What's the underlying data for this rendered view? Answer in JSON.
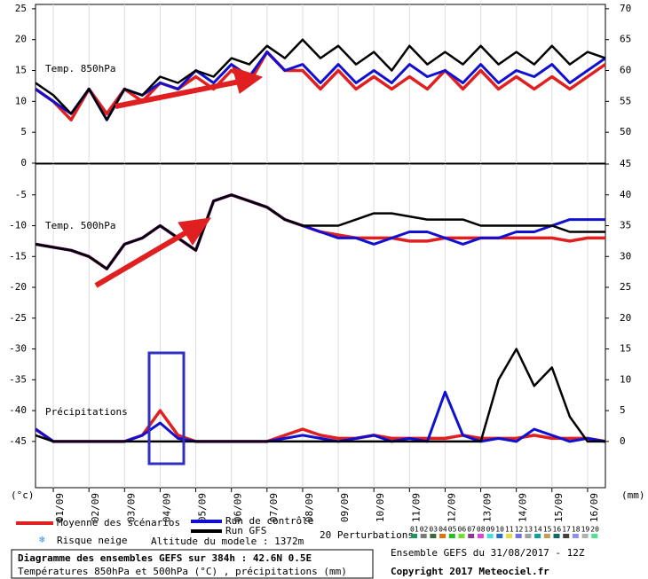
{
  "chart_data": [
    {
      "type": "line",
      "label": "Temp. 850hPa",
      "ylim": [
        0,
        25.7
      ],
      "yticks": [
        0,
        5,
        10,
        15,
        20,
        25
      ],
      "y2lim": [
        45,
        70.7
      ],
      "y2ticks": [
        50,
        55,
        60,
        65,
        70
      ],
      "series": [
        {
          "name": "Moyenne des scénarios",
          "color": "#e02020",
          "values": [
            12,
            10,
            7,
            12,
            8,
            12,
            10,
            13,
            12,
            14,
            12,
            15,
            13,
            18,
            15,
            15,
            12,
            15,
            12,
            14,
            12,
            14,
            12,
            15,
            12,
            15,
            12,
            14,
            12,
            14,
            12,
            14,
            16
          ]
        },
        {
          "name": "Run de contrôle",
          "color": "#1010d0",
          "values": [
            12,
            10,
            8,
            12,
            7,
            12,
            11,
            13,
            12,
            15,
            13,
            16,
            14,
            18,
            15,
            16,
            13,
            16,
            13,
            15,
            13,
            16,
            14,
            15,
            13,
            16,
            13,
            15,
            14,
            16,
            13,
            15,
            17
          ]
        },
        {
          "name": "Run GFS",
          "color": "#000000",
          "values": [
            13,
            11,
            8,
            12,
            7,
            12,
            11,
            14,
            13,
            15,
            14,
            17,
            16,
            19,
            17,
            20,
            17,
            19,
            16,
            18,
            15,
            19,
            16,
            18,
            16,
            19,
            16,
            18,
            16,
            19,
            16,
            18,
            17
          ]
        }
      ]
    },
    {
      "type": "line",
      "label": "Temp. 500hPa",
      "label2": "Précipitations",
      "ylabel": "(°c)",
      "y2label": "(mm)",
      "xlim": [
        0,
        384
      ],
      "xticks": [
        {
          "value": 12,
          "label": "01/09"
        },
        {
          "value": 36,
          "label": "02/09"
        },
        {
          "value": 60,
          "label": "03/09"
        },
        {
          "value": 84,
          "label": "04/09"
        },
        {
          "value": 108,
          "label": "05/09"
        },
        {
          "value": 132,
          "label": "06/09"
        },
        {
          "value": 156,
          "label": "07/09"
        },
        {
          "value": 180,
          "label": "08/09"
        },
        {
          "value": 204,
          "label": "09/09"
        },
        {
          "value": 228,
          "label": "10/09"
        },
        {
          "value": 252,
          "label": "11/09"
        },
        {
          "value": 276,
          "label": "12/09"
        },
        {
          "value": 300,
          "label": "13/09"
        },
        {
          "value": 324,
          "label": "14/09"
        },
        {
          "value": 348,
          "label": "15/09"
        },
        {
          "value": 372,
          "label": "16/09"
        }
      ],
      "grid": true,
      "ylim": [
        -52.5,
        0
      ],
      "yticks": [
        -45,
        -40,
        -35,
        -30,
        -25,
        -20,
        -15,
        -10,
        -5
      ],
      "y2lim": [
        -7.5,
        45
      ],
      "y2ticks": [
        0,
        5,
        10,
        15,
        20,
        25,
        30,
        35,
        40,
        45
      ],
      "series": [
        {
          "color": "#e02020",
          "values": [
            -13,
            -13.5,
            -14,
            -15,
            -17,
            -13,
            -12,
            -10,
            -12,
            -14,
            -6,
            -5,
            -6,
            -7,
            -9,
            -10,
            -11,
            -11.5,
            -12,
            -12,
            -12,
            -12.5,
            -12.5,
            -12,
            -12,
            -12,
            -12,
            -12,
            -12,
            -12,
            -12.5,
            -12,
            -12
          ]
        },
        {
          "color": "#1010d0",
          "values": [
            -13,
            -13.5,
            -14,
            -15,
            -17,
            -13,
            -12,
            -10,
            -12,
            -14,
            -6,
            -5,
            -6,
            -7,
            -9,
            -10,
            -11,
            -12,
            -12,
            -13,
            -12,
            -11,
            -11,
            -12,
            -13,
            -12,
            -12,
            -11,
            -11,
            -10,
            -9,
            -9,
            -9
          ]
        },
        {
          "color": "#000000",
          "values": [
            -13,
            -13.5,
            -14,
            -15,
            -17,
            -13,
            -12,
            -10,
            -12,
            -14,
            -6,
            -5,
            -6,
            -7,
            -9,
            -10,
            -10,
            -10,
            -9,
            -8,
            -8,
            -8.5,
            -9,
            -9,
            -9,
            -10,
            -10,
            -10,
            -10,
            -10,
            -11,
            -11,
            -11
          ]
        },
        {
          "color": "#e02020",
          "axis": "y2",
          "values": [
            2,
            0,
            0,
            0,
            0,
            0,
            1,
            5,
            1,
            0,
            0,
            0,
            0,
            0,
            1,
            2,
            1,
            0.5,
            0.5,
            1,
            0.5,
            0.5,
            0.5,
            0.5,
            1,
            0.5,
            0.5,
            0.5,
            1,
            0.5,
            0.5,
            0.5,
            0
          ]
        },
        {
          "color": "#1010d0",
          "axis": "y2",
          "values": [
            2,
            0,
            0,
            0,
            0,
            0,
            1,
            3,
            0.5,
            0,
            0,
            0,
            0,
            0,
            0.5,
            1,
            0.5,
            0,
            0.5,
            1,
            0,
            0.5,
            0,
            8,
            1,
            0,
            0.5,
            0,
            2,
            1,
            0,
            0.5,
            0
          ]
        },
        {
          "color": "#000000",
          "axis": "y2",
          "values": [
            1,
            0,
            0,
            0,
            0,
            0,
            0,
            0,
            0,
            0,
            0,
            0,
            0,
            0,
            0,
            0,
            0,
            0,
            0,
            0,
            0,
            0,
            0,
            0,
            0,
            0,
            10,
            15,
            9,
            12,
            4,
            0,
            0
          ]
        }
      ]
    }
  ],
  "legend": {
    "snow": "Risque neige",
    "altitude": "Altitude du modele : 1372m",
    "perturbations_title": "20 Perturbations"
  },
  "perturbations": [
    {
      "label": "01",
      "color": "#1a9a5a"
    },
    {
      "label": "02",
      "color": "#7a7a7a"
    },
    {
      "label": "03",
      "color": "#3a6a3a"
    },
    {
      "label": "04",
      "color": "#e07010"
    },
    {
      "label": "05",
      "color": "#20c020"
    },
    {
      "label": "06",
      "color": "#70e030"
    },
    {
      "label": "07",
      "color": "#8a3a8a"
    },
    {
      "label": "08",
      "color": "#e040e0"
    },
    {
      "label": "09",
      "color": "#40e0e0"
    },
    {
      "label": "10",
      "color": "#2070c0"
    },
    {
      "label": "11",
      "color": "#e0e040"
    },
    {
      "label": "12",
      "color": "#7070e0"
    },
    {
      "label": "13",
      "color": "#a0a0a0"
    },
    {
      "label": "14",
      "color": "#10a0a0"
    },
    {
      "label": "15",
      "color": "#c0a050"
    },
    {
      "label": "16",
      "color": "#106a6a"
    },
    {
      "label": "17",
      "color": "#404040"
    },
    {
      "label": "18",
      "color": "#9090f0"
    },
    {
      "label": "19",
      "color": "#b0b0b0"
    },
    {
      "label": "20",
      "color": "#50e090"
    }
  ],
  "footer": {
    "title": "Diagramme des ensembles GEFS sur 384h : 42.6N 0.5E",
    "subtitle": "Températures 850hPa et 500hPa (°C) , précipitations (mm)",
    "run": "Ensemble GEFS du 31/08/2017 - 12Z",
    "copyright": "Copyright 2017 Meteociel.fr"
  }
}
